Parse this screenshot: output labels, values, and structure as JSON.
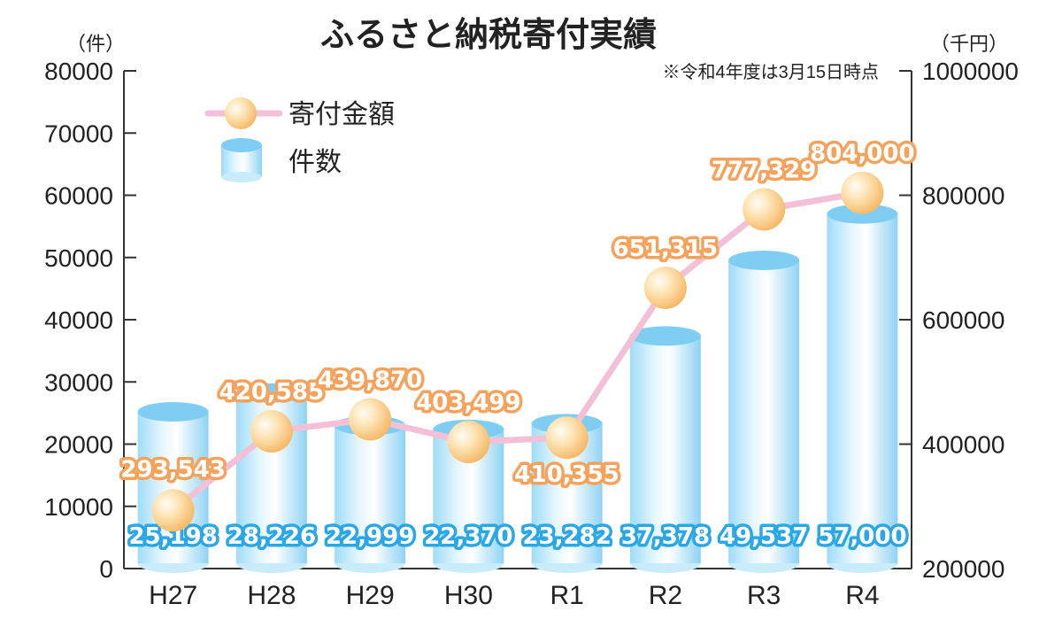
{
  "chart_data": {
    "type": "bar",
    "title": "ふるさと納税寄付実績",
    "note": "※令和4年度は3月15日時点",
    "left_unit": "（件）",
    "right_unit": "（千円）",
    "categories": [
      "H27",
      "H28",
      "H29",
      "H30",
      "R1",
      "R2",
      "R3",
      "R4"
    ],
    "left_ticks": [
      "0",
      "10000",
      "20000",
      "30000",
      "40000",
      "50000",
      "60000",
      "70000",
      "80000"
    ],
    "right_ticks": [
      "200000",
      "400000",
      "600000",
      "800000",
      "1000000"
    ],
    "ylim_left": [
      0,
      80000
    ],
    "ylim_right": [
      200000,
      1000000
    ],
    "series": [
      {
        "name": "件数",
        "kind": "cylinder-bar",
        "axis": "left",
        "values": [
          25198,
          28226,
          22999,
          22370,
          23282,
          37378,
          49537,
          57000
        ],
        "labels": [
          "25,198",
          "28,226",
          "22,999",
          "22,370",
          "23,282",
          "37,378",
          "49,537",
          "57,000"
        ],
        "color": "#8fd3f4"
      },
      {
        "name": "寄付金額",
        "kind": "line",
        "axis": "right",
        "values": [
          293543,
          420585,
          439870,
          403499,
          410355,
          651315,
          777329,
          804000
        ],
        "labels": [
          "293,543",
          "420,585",
          "439,870",
          "403,499",
          "410,355",
          "651,315",
          "777,329",
          "804,000"
        ],
        "color": "#f7c6dc",
        "marker_color": "#fbd79a"
      }
    ],
    "legend": [
      {
        "label": "寄付金額"
      },
      {
        "label": "件数"
      }
    ],
    "colors": {
      "bar_top": "#7fcdf2",
      "bar_light": "#ffffff",
      "line": "#f4c0d7",
      "marker": "#f9cf86",
      "blue_label_stroke": "#29a7e6",
      "orange_label_stroke": "#f5a35c"
    }
  }
}
